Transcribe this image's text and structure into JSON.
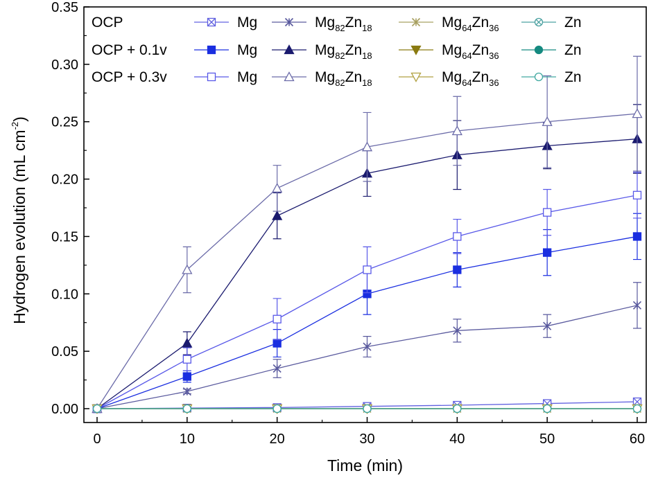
{
  "chart_data": {
    "type": "line",
    "xlabel": "Time (min)",
    "ylabel_main": "Hydrogen evolution (mL cm",
    "ylabel_sup": "-2",
    "ylabel_close": ")",
    "xlim": [
      0,
      60
    ],
    "ylim": [
      0,
      0.35
    ],
    "x_ticks": [
      0,
      10,
      20,
      30,
      40,
      50,
      60
    ],
    "x_tick_labels": [
      "0",
      "10",
      "20",
      "30",
      "40",
      "50",
      "60"
    ],
    "y_ticks": [
      0,
      0.05,
      0.1,
      0.15,
      0.2,
      0.25,
      0.3,
      0.35
    ],
    "y_tick_labels": [
      "0.00",
      "0.05",
      "0.10",
      "0.15",
      "0.20",
      "0.25",
      "0.30",
      "0.35"
    ],
    "grid": false,
    "legend_placement": "top-left",
    "x": [
      0,
      10,
      20,
      30,
      40,
      50,
      60
    ],
    "legend_rows": [
      {
        "condition": "OCP",
        "entries": [
          {
            "label": "Mg",
            "sub": "",
            "label2": "",
            "sub2": "",
            "series": 0
          },
          {
            "label": "Mg",
            "sub": "82",
            "label2": "Zn",
            "sub2": "18",
            "series": 1
          },
          {
            "label": "Mg",
            "sub": "64",
            "label2": "Zn",
            "sub2": "36",
            "series": 2
          },
          {
            "label": "Zn",
            "sub": "",
            "label2": "",
            "sub2": "",
            "series": 3
          }
        ]
      },
      {
        "condition": "OCP + 0.1v",
        "entries": [
          {
            "label": "Mg",
            "sub": "",
            "label2": "",
            "sub2": "",
            "series": 4
          },
          {
            "label": "Mg",
            "sub": "82",
            "label2": "Zn",
            "sub2": "18",
            "series": 5
          },
          {
            "label": "Mg",
            "sub": "64",
            "label2": "Zn",
            "sub2": "36",
            "series": 6
          },
          {
            "label": "Zn",
            "sub": "",
            "label2": "",
            "sub2": "",
            "series": 7
          }
        ]
      },
      {
        "condition": "OCP + 0.3v",
        "entries": [
          {
            "label": "Mg",
            "sub": "",
            "label2": "",
            "sub2": "",
            "series": 8
          },
          {
            "label": "Mg",
            "sub": "82",
            "label2": "Zn",
            "sub2": "18",
            "series": 9
          },
          {
            "label": "Mg",
            "sub": "64",
            "label2": "Zn",
            "sub2": "36",
            "series": 10
          },
          {
            "label": "Zn",
            "sub": "",
            "label2": "",
            "sub2": "",
            "series": 11
          }
        ]
      }
    ],
    "series": [
      {
        "key": "ocp-mg",
        "color": "#6060e0",
        "marker": "square-cross",
        "values": [
          0,
          0.0005,
          0.001,
          0.002,
          0.003,
          0.0045,
          0.006
        ],
        "errors": [
          0,
          0.0005,
          0.001,
          0.001,
          0.0015,
          0.0015,
          0.002
        ]
      },
      {
        "key": "ocp-mg82zn18",
        "color": "#5a5a9e",
        "marker": "star",
        "values": [
          0,
          0.015,
          0.035,
          0.054,
          0.068,
          0.072,
          0.09
        ],
        "errors": [
          0,
          0.002,
          0.008,
          0.009,
          0.01,
          0.01,
          0.02
        ]
      },
      {
        "key": "ocp-mg64zn36",
        "color": "#a8a060",
        "marker": "star",
        "values": [
          0,
          0,
          0,
          0,
          0,
          0,
          0
        ],
        "errors": [
          0,
          0,
          0,
          0,
          0,
          0,
          0
        ]
      },
      {
        "key": "ocp-zn",
        "color": "#4aa0a0",
        "marker": "circle-cross",
        "values": [
          0,
          0,
          0,
          0,
          0,
          0,
          0
        ],
        "errors": [
          0,
          0,
          0,
          0,
          0,
          0,
          0
        ]
      },
      {
        "key": "p01-mg",
        "color": "#1a2ee0",
        "marker": "square-filled",
        "values": [
          0,
          0.028,
          0.057,
          0.1,
          0.121,
          0.136,
          0.15
        ],
        "errors": [
          0,
          0.005,
          0.012,
          0.018,
          0.015,
          0.02,
          0.02
        ]
      },
      {
        "key": "p01-mg82zn18",
        "color": "#1a1a6e",
        "marker": "triangle-filled",
        "values": [
          0,
          0.057,
          0.168,
          0.205,
          0.221,
          0.229,
          0.235
        ],
        "errors": [
          0,
          0.01,
          0.02,
          0.02,
          0.03,
          0.02,
          0.03
        ]
      },
      {
        "key": "p01-mg64zn36",
        "color": "#8a7a10",
        "marker": "triangle-down-filled",
        "values": [
          0,
          0,
          0,
          0,
          0,
          0,
          0
        ],
        "errors": [
          0,
          0,
          0,
          0,
          0,
          0,
          0
        ]
      },
      {
        "key": "p01-zn",
        "color": "#158a80",
        "marker": "circle-filled",
        "values": [
          0,
          0,
          0,
          0,
          0,
          0,
          0
        ],
        "errors": [
          0,
          0,
          0,
          0,
          0,
          0,
          0
        ]
      },
      {
        "key": "p03-mg",
        "color": "#5858e8",
        "marker": "square-open",
        "values": [
          0,
          0.043,
          0.078,
          0.121,
          0.15,
          0.171,
          0.186
        ],
        "errors": [
          0,
          0.01,
          0.018,
          0.02,
          0.015,
          0.02,
          0.02
        ]
      },
      {
        "key": "p03-mg82zn18",
        "color": "#6a6aa8",
        "marker": "triangle-open",
        "values": [
          0,
          0.121,
          0.192,
          0.228,
          0.242,
          0.25,
          0.257
        ],
        "errors": [
          0,
          0.02,
          0.02,
          0.03,
          0.03,
          0.04,
          0.05
        ]
      },
      {
        "key": "p03-mg64zn36",
        "color": "#b0a040",
        "marker": "triangle-down-open",
        "values": [
          0,
          0,
          0,
          0,
          0,
          0,
          0
        ],
        "errors": [
          0,
          0,
          0,
          0,
          0,
          0,
          0
        ]
      },
      {
        "key": "p03-zn",
        "color": "#40a8a0",
        "marker": "circle-open",
        "values": [
          0,
          0,
          0,
          0,
          0,
          0,
          0
        ],
        "errors": [
          0,
          0,
          0,
          0,
          0,
          0,
          0
        ]
      }
    ]
  }
}
